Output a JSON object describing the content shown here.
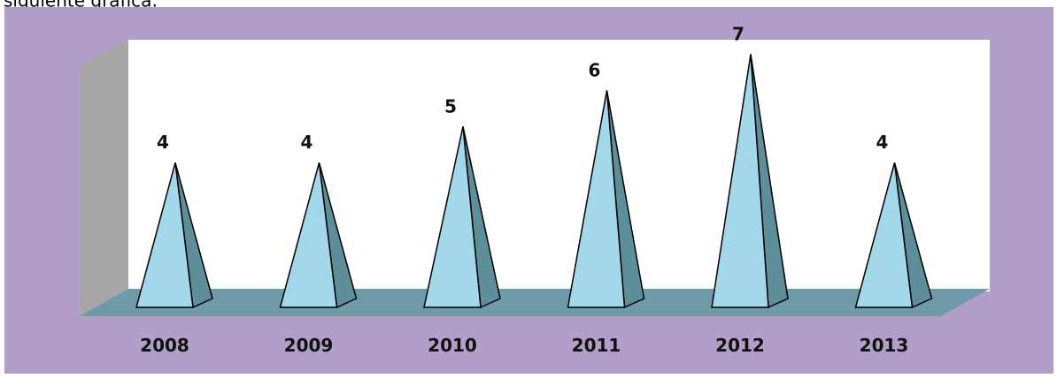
{
  "caption": "siguiente gráfica:",
  "chart_data": {
    "type": "pyramid",
    "categories": [
      "2008",
      "2009",
      "2010",
      "2011",
      "2012",
      "2013"
    ],
    "values": [
      4,
      4,
      5,
      6,
      7,
      4
    ],
    "color": "#a3d8ea",
    "ylim": [
      0,
      7.4
    ]
  }
}
